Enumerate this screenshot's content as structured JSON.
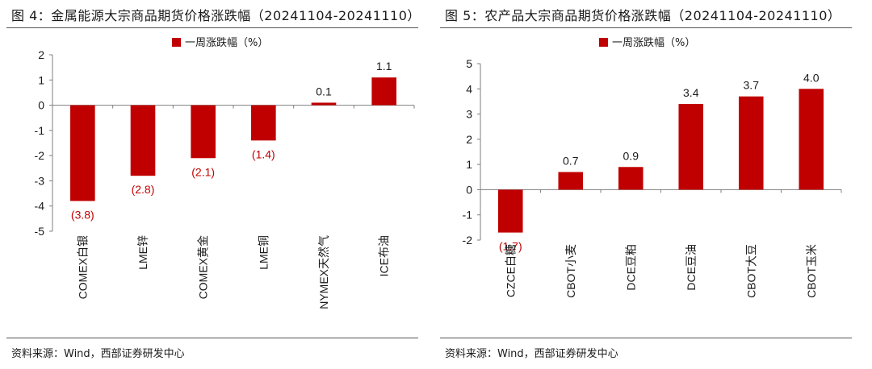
{
  "panels": [
    {
      "title": "图 4：金属能源大宗商品期货价格涨跌幅（20241104-20241110）",
      "source": "资料来源：Wind，西部证券研发中心"
    },
    {
      "title": "图 5：农产品大宗商品期货价格涨跌幅（20241104-20241110）",
      "source": "资料来源：Wind，西部证券研发中心"
    }
  ],
  "chart_data": [
    {
      "type": "bar",
      "categories": [
        "COMEX白银",
        "LME锌",
        "COMEX黄金",
        "LME铜",
        "NYMEX天然气",
        "ICE布油"
      ],
      "series": [
        {
          "name": "一周涨跌幅（%）",
          "values": [
            -3.8,
            -2.8,
            -2.1,
            -1.4,
            0.1,
            1.1
          ]
        }
      ],
      "data_labels": [
        "(3.8)",
        "(2.8)",
        "(2.1)",
        "(1.4)",
        "0.1",
        "1.1"
      ],
      "ylim": [
        -5,
        2
      ],
      "yticks": [
        "2",
        "1",
        "0",
        "-1",
        "-2",
        "-3",
        "-4",
        "-5"
      ],
      "legend": "top-center",
      "grid": false,
      "colors": {
        "bar": "#c00000",
        "neg_label": "#c00000",
        "pos_label": "#1a1a1a"
      }
    },
    {
      "type": "bar",
      "categories": [
        "CZCE白糖",
        "CBOT小麦",
        "DCE豆粕",
        "DCE豆油",
        "CBOT大豆",
        "CBOT玉米"
      ],
      "series": [
        {
          "name": "一周涨跌幅（%）",
          "values": [
            -1.7,
            0.7,
            0.9,
            3.4,
            3.7,
            4.0
          ]
        }
      ],
      "data_labels": [
        "(1.7)",
        "0.7",
        "0.9",
        "3.4",
        "3.7",
        "4.0"
      ],
      "ylim": [
        -2,
        5
      ],
      "yticks": [
        "5",
        "4",
        "3",
        "2",
        "1",
        "0",
        "-1",
        "-2"
      ],
      "legend": "top-center",
      "grid": false,
      "colors": {
        "bar": "#c00000",
        "neg_label": "#c00000",
        "pos_label": "#1a1a1a"
      }
    }
  ]
}
